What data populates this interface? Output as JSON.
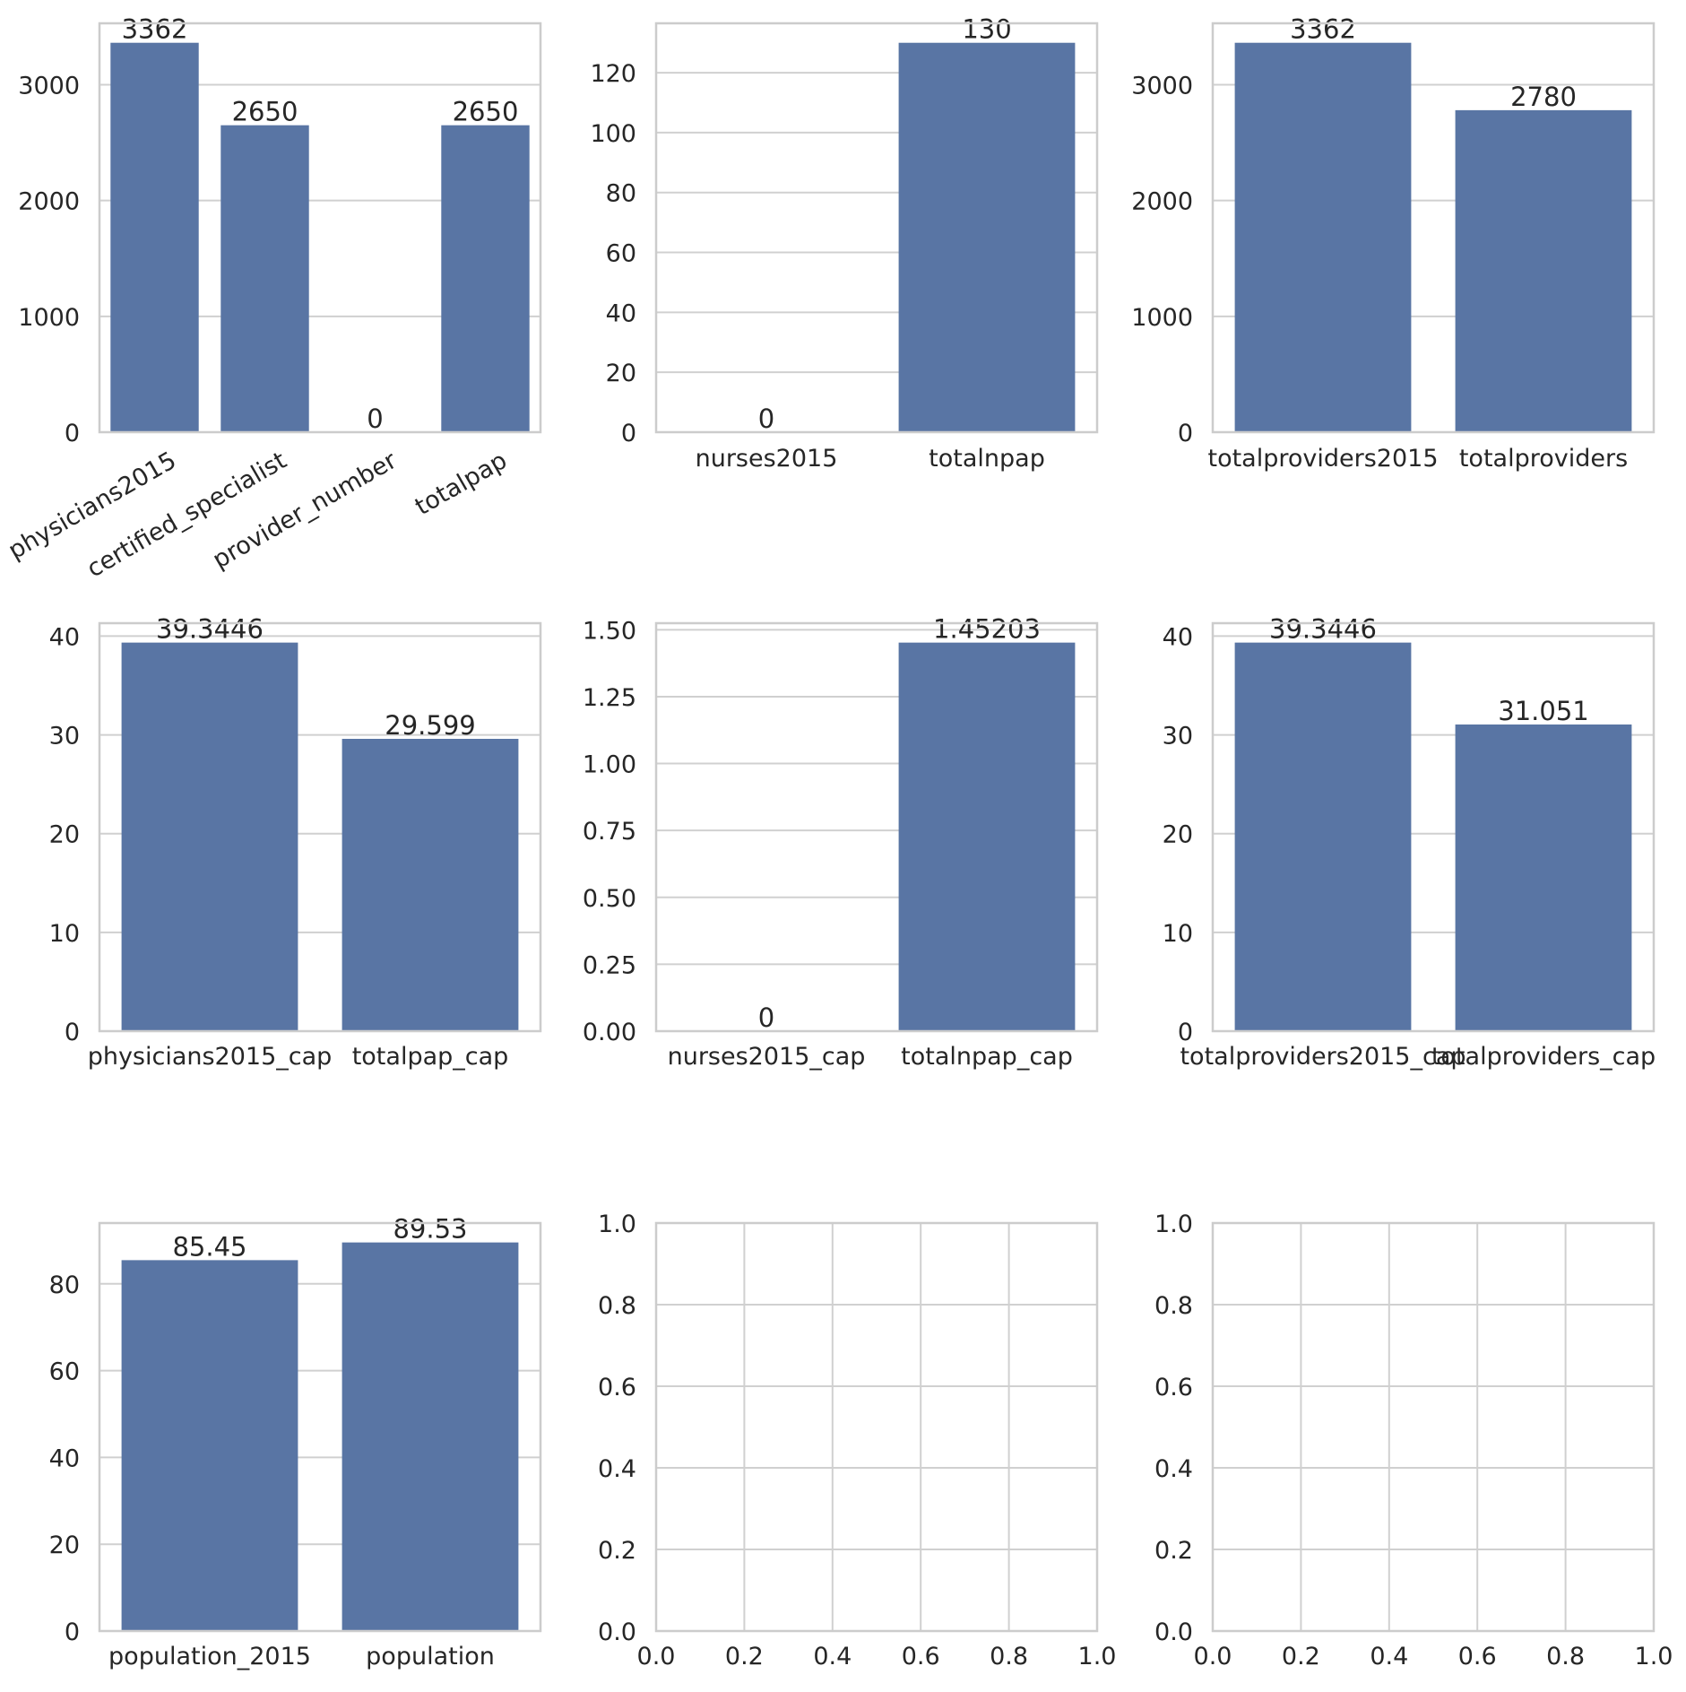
{
  "colors": {
    "bar": "#5975a4",
    "grid": "#d0d0d0",
    "spine": "#cccccc",
    "text": "#262626",
    "background": "#ffffff"
  },
  "chart_data": [
    {
      "type": "bar",
      "categories": [
        "physicians2015",
        "certified_specialist",
        "provider_number",
        "totalpap"
      ],
      "values": [
        3362,
        2650,
        0,
        2650
      ],
      "labels": [
        "3362",
        "2650",
        "0",
        "2650"
      ],
      "ylim": [
        0,
        3530
      ],
      "yticks": [
        0,
        1000,
        2000,
        3000
      ],
      "ytick_labels": [
        "0",
        "1000",
        "2000",
        "3000"
      ],
      "xtick_rotation": -30,
      "grid": true
    },
    {
      "type": "bar",
      "categories": [
        "nurses2015",
        "totalnpap"
      ],
      "values": [
        0,
        130
      ],
      "labels": [
        "0",
        "130"
      ],
      "ylim": [
        0,
        136.5
      ],
      "yticks": [
        0,
        20,
        40,
        60,
        80,
        100,
        120
      ],
      "ytick_labels": [
        "0",
        "20",
        "40",
        "60",
        "80",
        "100",
        "120"
      ],
      "grid": true
    },
    {
      "type": "bar",
      "categories": [
        "totalproviders2015",
        "totalproviders"
      ],
      "values": [
        3362,
        2780
      ],
      "labels": [
        "3362",
        "2780"
      ],
      "ylim": [
        0,
        3530
      ],
      "yticks": [
        0,
        1000,
        2000,
        3000
      ],
      "ytick_labels": [
        "0",
        "1000",
        "2000",
        "3000"
      ],
      "grid": true
    },
    {
      "type": "bar",
      "categories": [
        "physicians2015_cap",
        "totalpap_cap"
      ],
      "values": [
        39.3446,
        29.599
      ],
      "labels": [
        "39.3446",
        "29.599"
      ],
      "ylim": [
        0,
        41.31
      ],
      "yticks": [
        0,
        10,
        20,
        30,
        40
      ],
      "ytick_labels": [
        "0",
        "10",
        "20",
        "30",
        "40"
      ],
      "grid": true
    },
    {
      "type": "bar",
      "categories": [
        "nurses2015_cap",
        "totalnpap_cap"
      ],
      "values": [
        0,
        1.45203
      ],
      "labels": [
        "0",
        "1.45203"
      ],
      "ylim": [
        0,
        1.5246
      ],
      "yticks": [
        0,
        0.25,
        0.5,
        0.75,
        1.0,
        1.25,
        1.5
      ],
      "ytick_labels": [
        "0.00",
        "0.25",
        "0.50",
        "0.75",
        "1.00",
        "1.25",
        "1.50"
      ],
      "grid": true
    },
    {
      "type": "bar",
      "categories": [
        "totalproviders2015_cap",
        "totalproviders_cap"
      ],
      "values": [
        39.3446,
        31.051
      ],
      "labels": [
        "39.3446",
        "31.051"
      ],
      "ylim": [
        0,
        41.31
      ],
      "yticks": [
        0,
        10,
        20,
        30,
        40
      ],
      "ytick_labels": [
        "0",
        "10",
        "20",
        "30",
        "40"
      ],
      "grid": true
    },
    {
      "type": "bar",
      "categories": [
        "population_2015",
        "population"
      ],
      "values": [
        85.45,
        89.53
      ],
      "labels": [
        "85.45",
        "89.53"
      ],
      "ylim": [
        0,
        94.0
      ],
      "yticks": [
        0,
        20,
        40,
        60,
        80
      ],
      "ytick_labels": [
        "0",
        "20",
        "40",
        "60",
        "80"
      ],
      "grid": true
    },
    {
      "type": "bar",
      "categories": [],
      "values": [],
      "labels": [],
      "xlim": [
        0,
        1
      ],
      "ylim": [
        0,
        1
      ],
      "xticks": [
        0,
        0.2,
        0.4,
        0.6,
        0.8,
        1.0
      ],
      "xtick_labels": [
        "0.0",
        "0.2",
        "0.4",
        "0.6",
        "0.8",
        "1.0"
      ],
      "yticks": [
        0,
        0.2,
        0.4,
        0.6,
        0.8,
        1.0
      ],
      "ytick_labels": [
        "0.0",
        "0.2",
        "0.4",
        "0.6",
        "0.8",
        "1.0"
      ],
      "grid": true
    },
    {
      "type": "bar",
      "categories": [],
      "values": [],
      "labels": [],
      "xlim": [
        0,
        1
      ],
      "ylim": [
        0,
        1
      ],
      "xticks": [
        0,
        0.2,
        0.4,
        0.6,
        0.8,
        1.0
      ],
      "xtick_labels": [
        "0.0",
        "0.2",
        "0.4",
        "0.6",
        "0.8",
        "1.0"
      ],
      "yticks": [
        0,
        0.2,
        0.4,
        0.6,
        0.8,
        1.0
      ],
      "ytick_labels": [
        "0.0",
        "0.2",
        "0.4",
        "0.6",
        "0.8",
        "1.0"
      ],
      "grid": true
    }
  ]
}
